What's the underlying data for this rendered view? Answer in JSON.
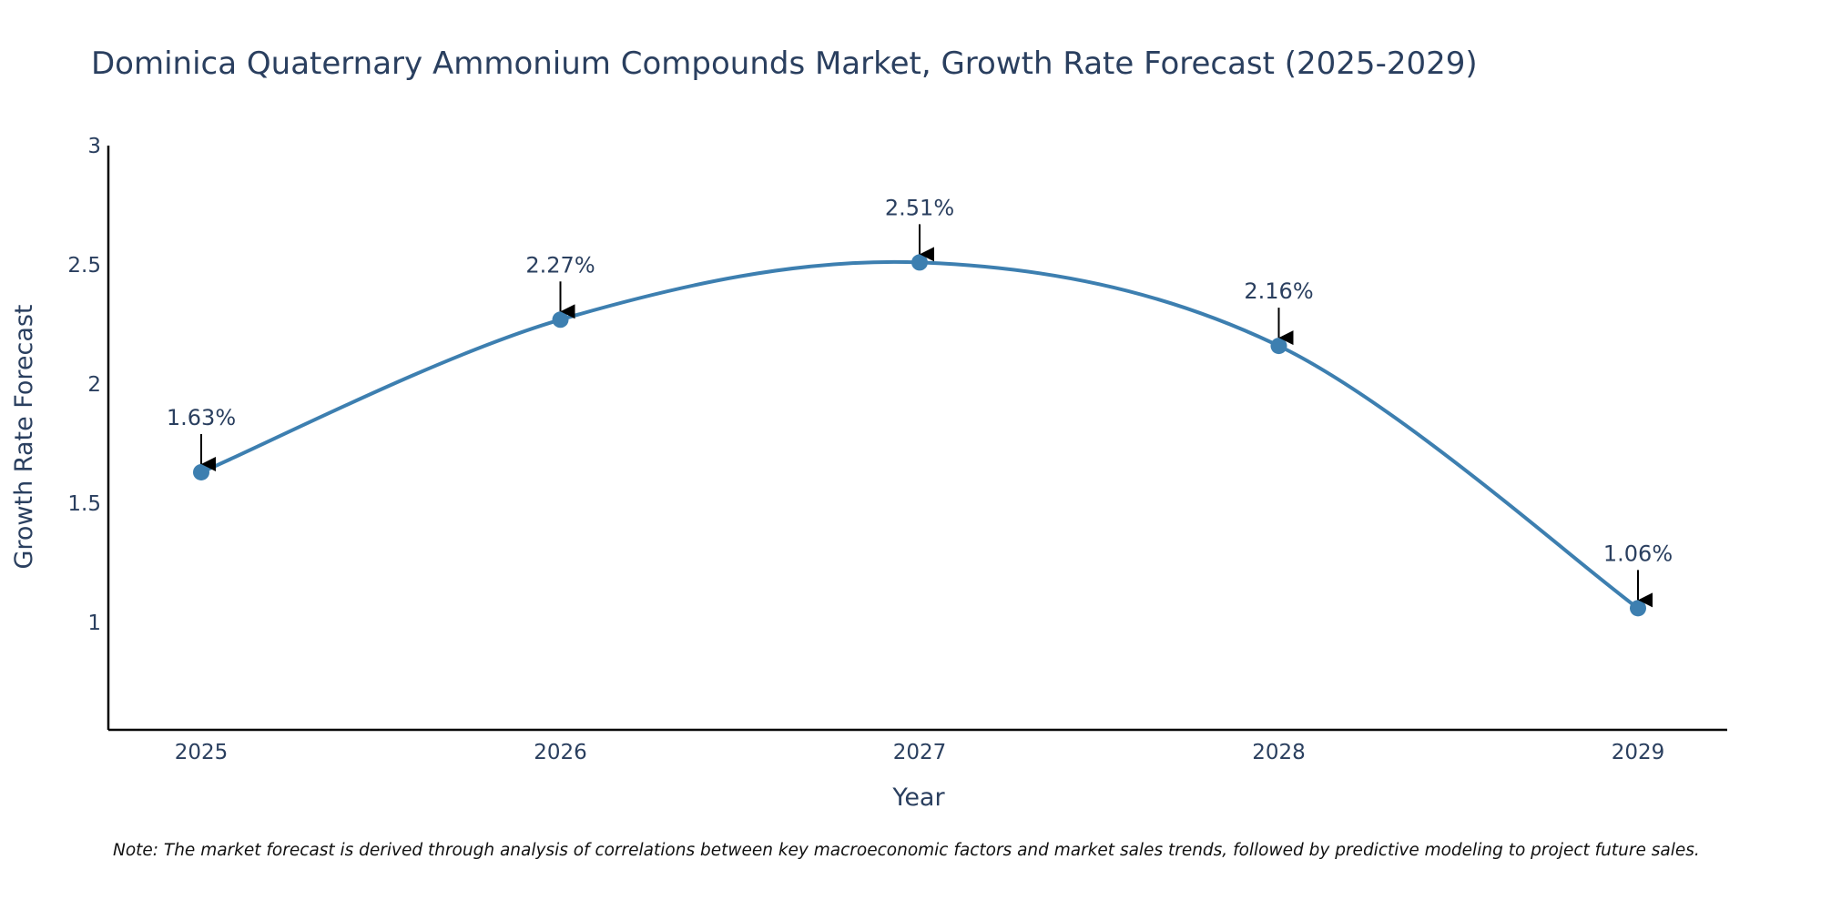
{
  "chart_data": {
    "type": "line",
    "title": "Dominica Quaternary Ammonium Compounds Market, Growth Rate Forecast (2025-2029)",
    "xlabel": "Year",
    "ylabel": "Growth Rate Forecast",
    "categories": [
      "2025",
      "2026",
      "2027",
      "2028",
      "2029"
    ],
    "series": [
      {
        "name": "Growth Rate Forecast",
        "values": [
          1.63,
          2.27,
          2.51,
          2.16,
          1.06
        ],
        "color": "#3d7fb0"
      }
    ],
    "data_labels": [
      "1.63%",
      "2.27%",
      "2.51%",
      "2.16%",
      "1.06%"
    ],
    "y_ticks": [
      "1",
      "1.5",
      "2",
      "2.5",
      "3"
    ],
    "y_tick_values": [
      1,
      1.5,
      2,
      2.5,
      3
    ],
    "ylim": [
      0.55,
      3
    ],
    "grid": false,
    "line_shape": "spline",
    "arrow_color": "#000000",
    "axis_color": "#000000"
  },
  "note": "Note: The market forecast is derived through analysis of correlations between key macroeconomic factors and market sales trends, followed by predictive modeling to project future sales."
}
